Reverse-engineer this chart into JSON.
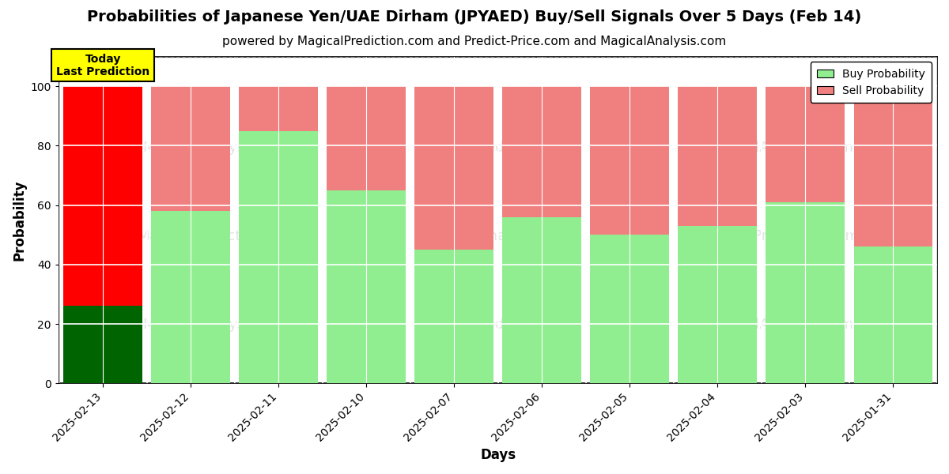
{
  "title": "Probabilities of Japanese Yen/UAE Dirham (JPYAED) Buy/Sell Signals Over 5 Days (Feb 14)",
  "subtitle": "powered by MagicalPrediction.com and Predict-Price.com and MagicalAnalysis.com",
  "xlabel": "Days",
  "ylabel": "Probability",
  "categories": [
    "2025-02-13",
    "2025-02-12",
    "2025-02-11",
    "2025-02-10",
    "2025-02-07",
    "2025-02-06",
    "2025-02-05",
    "2025-02-04",
    "2025-02-03",
    "2025-01-31"
  ],
  "buy_values": [
    26,
    58,
    85,
    65,
    45,
    56,
    50,
    53,
    61,
    46
  ],
  "sell_values": [
    74,
    42,
    15,
    35,
    55,
    44,
    50,
    47,
    39,
    54
  ],
  "today_buy_color": "#006400",
  "today_sell_color": "#FF0000",
  "buy_color": "#90EE90",
  "sell_color": "#F08080",
  "today_label_bg": "#FFFF00",
  "today_label_text": "Today\nLast Prediction",
  "legend_buy": "Buy Probability",
  "legend_sell": "Sell Probability",
  "ylim": [
    0,
    110
  ],
  "dashed_line_y": 110,
  "bar_width": 0.9,
  "background_color": "#ffffff",
  "plot_bg_color": "#ffffff",
  "grid_color": "#ffffff",
  "title_fontsize": 14,
  "subtitle_fontsize": 11,
  "axis_label_fontsize": 12,
  "tick_fontsize": 10
}
